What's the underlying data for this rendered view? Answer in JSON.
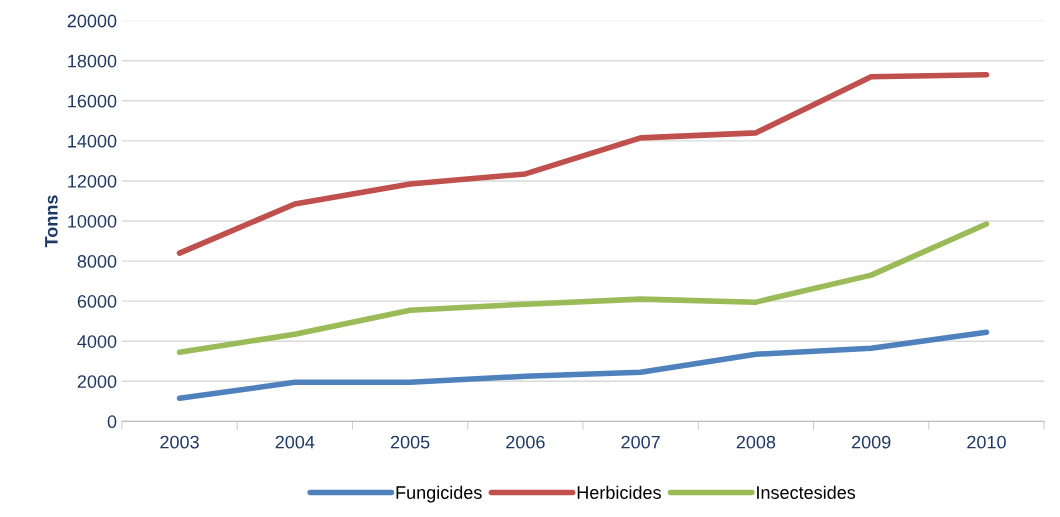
{
  "chart_data": {
    "type": "line",
    "ylabel": "Tonns",
    "categories": [
      "2003",
      "2004",
      "2005",
      "2006",
      "2007",
      "2008",
      "2009",
      "2010"
    ],
    "series": [
      {
        "name": "Fungicides",
        "color": "#4f81bd",
        "values": [
          1150,
          1950,
          1950,
          2250,
          2450,
          3350,
          3650,
          4450
        ]
      },
      {
        "name": "Herbicides",
        "color": "#c0504d",
        "values": [
          8400,
          10850,
          11850,
          12350,
          14150,
          14400,
          17200,
          17300
        ]
      },
      {
        "name": "Insectesides",
        "color": "#9bbb59",
        "values": [
          3450,
          4350,
          5550,
          5850,
          6100,
          5950,
          7300,
          9850
        ]
      }
    ],
    "ylim": [
      0,
      20000
    ],
    "yticks": [
      0,
      2000,
      4000,
      6000,
      8000,
      10000,
      12000,
      14000,
      16000,
      18000,
      20000
    ],
    "grid": "y",
    "legend": "bottom",
    "marker": "none",
    "line_style": "solid"
  }
}
